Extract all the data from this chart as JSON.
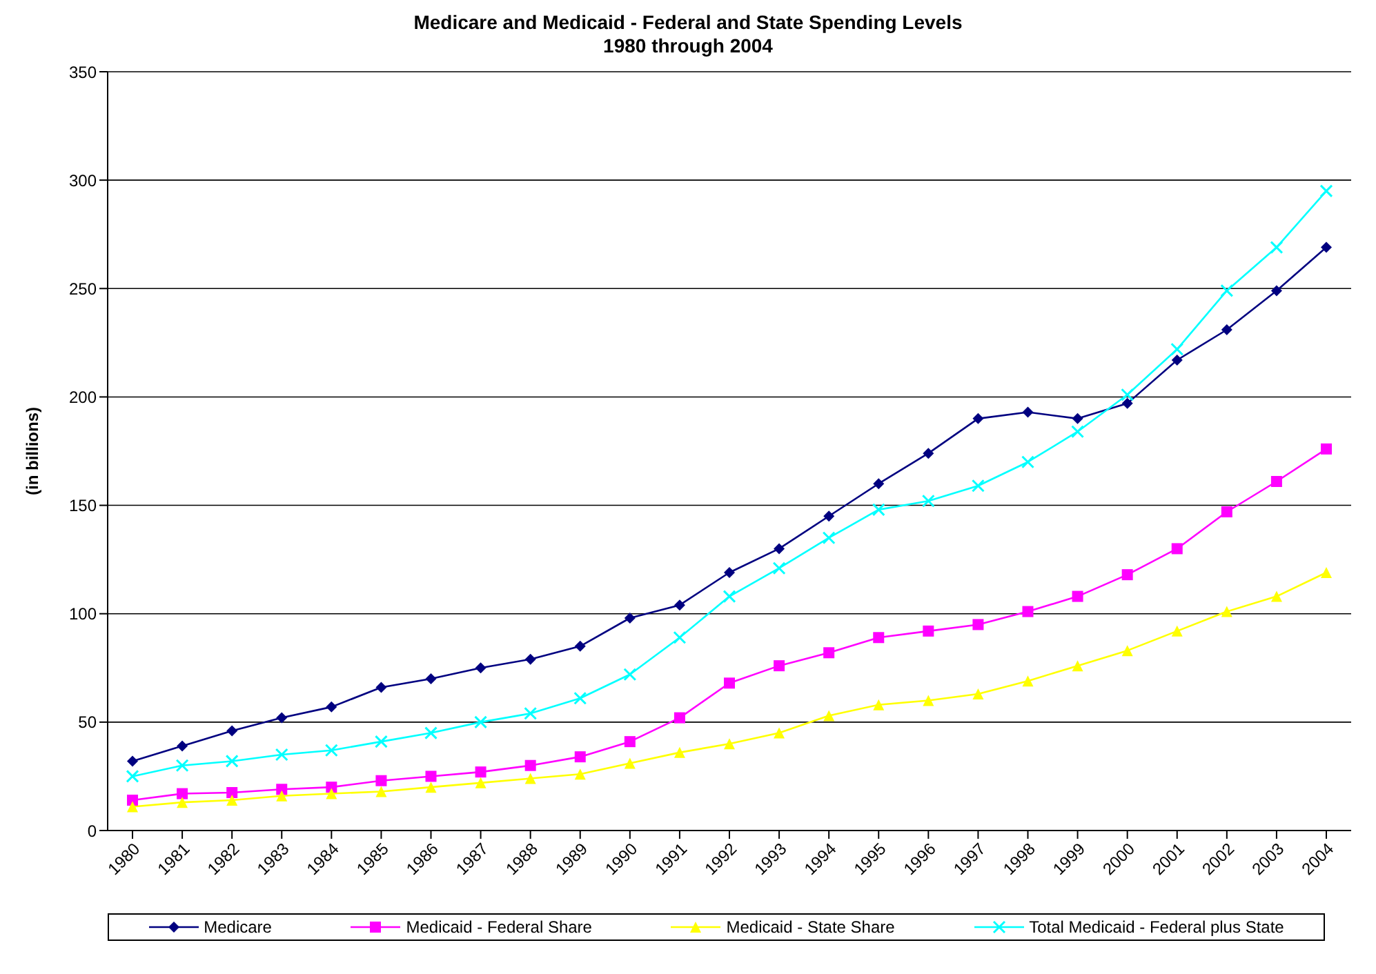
{
  "chart_data": {
    "type": "line",
    "title": "Medicare and Medicaid - Federal and State Spending Levels\n1980 through 2004",
    "ylabel": "(in billions)",
    "categories": [
      "1980",
      "1981",
      "1982",
      "1983",
      "1984",
      "1985",
      "1986",
      "1987",
      "1988",
      "1989",
      "1990",
      "1991",
      "1992",
      "1993",
      "1994",
      "1995",
      "1996",
      "1997",
      "1998",
      "1999",
      "2000",
      "2001",
      "2002",
      "2003",
      "2004"
    ],
    "series": [
      {
        "name": "Medicare",
        "color": "#000080",
        "marker": "diamond",
        "values": [
          32,
          39,
          46,
          52,
          57,
          66,
          70,
          75,
          79,
          85,
          98,
          104,
          119,
          130,
          145,
          160,
          174,
          190,
          193,
          190,
          197,
          217,
          231,
          249,
          269
        ]
      },
      {
        "name": "Medicaid - Federal Share",
        "color": "#ff00ff",
        "marker": "square",
        "values": [
          14,
          17,
          17.5,
          19,
          20,
          23,
          25,
          27,
          30,
          34,
          41,
          52,
          68,
          76,
          82,
          89,
          92,
          95,
          101,
          108,
          118,
          130,
          147,
          161,
          176
        ]
      },
      {
        "name": "Medicaid - State Share",
        "color": "#ffff00",
        "marker": "triangle",
        "values": [
          11,
          13,
          14,
          16,
          17,
          18,
          20,
          22,
          24,
          26,
          31,
          36,
          40,
          45,
          53,
          58,
          60,
          63,
          69,
          76,
          83,
          92,
          101,
          108,
          119
        ]
      },
      {
        "name": "Total Medicaid - Federal plus State",
        "color": "#00ffff",
        "marker": "cross",
        "values": [
          25,
          30,
          32,
          35,
          37,
          41,
          45,
          50,
          54,
          61,
          72,
          89,
          108,
          121,
          135,
          148,
          152,
          159,
          170,
          184,
          201,
          222,
          249,
          269,
          295
        ]
      }
    ],
    "ylim": [
      0,
      350
    ],
    "yticks": [
      0,
      50,
      100,
      150,
      200,
      250,
      300,
      350
    ],
    "grid": "y",
    "legend": "bottom"
  }
}
